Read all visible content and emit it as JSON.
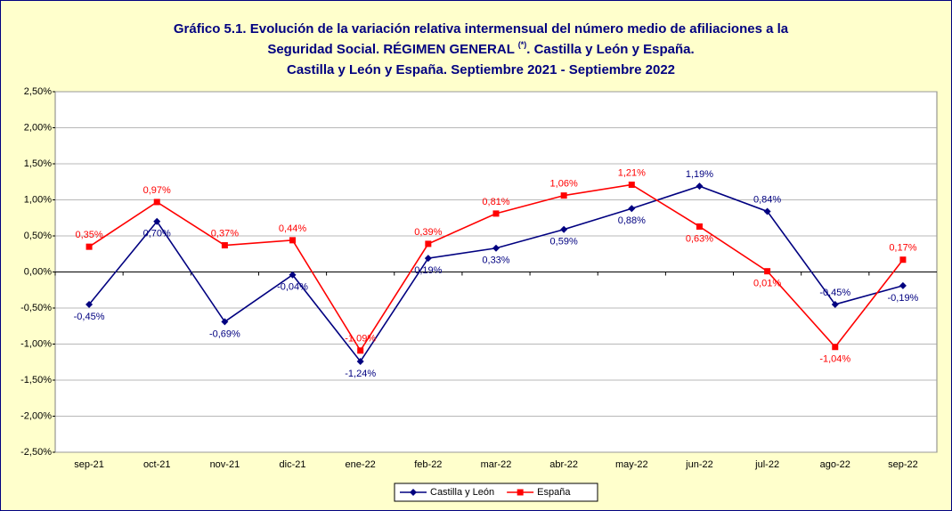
{
  "chart_data": {
    "type": "line",
    "title": {
      "line1": "Gráfico 5.1. Evolución de la variación relativa intermensual del número medio de afiliaciones a la",
      "line2a": "Seguridad Social. RÉGIMEN GENERAL ",
      "line2sup": "(*)",
      "line2b": ". Castilla y León y España.",
      "line3": "Castilla y León y España. Septiembre 2021 - Septiembre 2022"
    },
    "categories": [
      "sep-21",
      "oct-21",
      "nov-21",
      "dic-21",
      "ene-22",
      "feb-22",
      "mar-22",
      "abr-22",
      "may-22",
      "jun-22",
      "jul-22",
      "ago-22",
      "sep-22"
    ],
    "series": [
      {
        "name": "Castilla y León",
        "color": "#000080",
        "marker": "diamond",
        "values": [
          -0.45,
          0.7,
          -0.69,
          -0.04,
          -1.24,
          0.19,
          0.33,
          0.59,
          0.88,
          1.19,
          0.84,
          -0.45,
          -0.19
        ],
        "value_labels": [
          "-0,45%",
          "0,70%",
          "-0,69%",
          "-0,04%",
          "-1,24%",
          "0,19%",
          "0,33%",
          "0,59%",
          "0,88%",
          "1,19%",
          "0,84%",
          "-0,45%",
          "-0,19%"
        ]
      },
      {
        "name": "España",
        "color": "#ff0000",
        "marker": "square",
        "values": [
          0.35,
          0.97,
          0.37,
          0.44,
          -1.09,
          0.39,
          0.81,
          1.06,
          1.21,
          0.63,
          0.01,
          -1.04,
          0.17
        ],
        "value_labels": [
          "0,35%",
          "0,97%",
          "0,37%",
          "0,44%",
          "-1,09%",
          "0,39%",
          "0,81%",
          "1,06%",
          "1,21%",
          "0,63%",
          "0,01%",
          "-1,04%",
          "0,17%"
        ]
      }
    ],
    "ylim": [
      -2.5,
      2.5
    ],
    "yticks": [
      {
        "value": -2.5,
        "label": "-2,50%"
      },
      {
        "value": -2,
        "label": "-2,00%"
      },
      {
        "value": -1.5,
        "label": "-1,50%"
      },
      {
        "value": -1,
        "label": "-1,00%"
      },
      {
        "value": -0.5,
        "label": "-0,50%"
      },
      {
        "value": 0,
        "label": "0,00%"
      },
      {
        "value": 0.5,
        "label": "0,50%"
      },
      {
        "value": 1,
        "label": "1,00%"
      },
      {
        "value": 1.5,
        "label": "1,50%"
      },
      {
        "value": 2,
        "label": "2,00%"
      },
      {
        "value": 2.5,
        "label": "2,50%"
      }
    ],
    "grid": true,
    "legend": "bottom"
  }
}
